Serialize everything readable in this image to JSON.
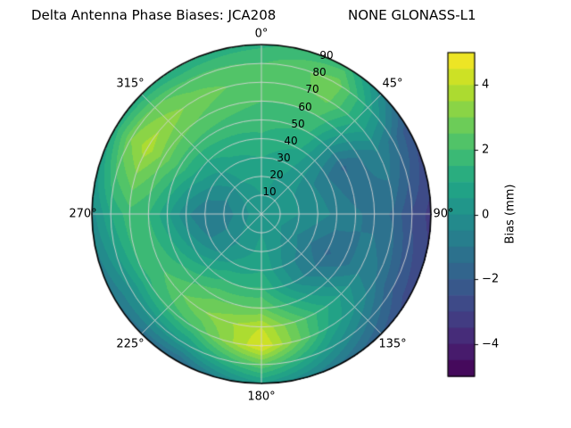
{
  "header": {
    "title_left": "Delta Antenna Phase Biases: JCA208",
    "title_right": "NONE GLONASS-L1"
  },
  "chart_data": {
    "type": "heatmap",
    "projection": "polar",
    "title": "Delta Antenna Phase Biases: JCA208        NONE GLONASS-L1",
    "theta_direction": "clockwise",
    "theta_zero": "top",
    "theta_labels": [
      "0°",
      "45°",
      "90°",
      "135°",
      "180°",
      "225°",
      "270°",
      "315°"
    ],
    "r_labels": [
      "10",
      "20",
      "30",
      "40",
      "50",
      "60",
      "70",
      "80",
      "90"
    ],
    "colorbar": {
      "label": "Bias (mm)",
      "tick_labels": [
        "4",
        "2",
        "0",
        "−2",
        "−4"
      ],
      "tick_values": [
        4,
        2,
        0,
        -2,
        -4
      ],
      "vmin": -5,
      "vmax": 5,
      "level_step": 0.5,
      "colormap": "viridis"
    },
    "grid": {
      "azimuths_deg": [
        0,
        30,
        60,
        90,
        120,
        150,
        180,
        210,
        240,
        270,
        300,
        330
      ],
      "zenith_rings_deg": [
        0,
        10,
        20,
        30,
        40,
        50,
        60,
        70,
        80,
        90
      ],
      "values": [
        [
          0.4,
          0.5,
          0.7,
          1.0,
          1.4,
          1.7,
          2.0,
          2.2,
          2.0,
          1.4
        ],
        [
          0.4,
          0.4,
          0.4,
          0.6,
          1.0,
          1.5,
          2.0,
          2.6,
          2.8,
          1.8
        ],
        [
          0.4,
          0.3,
          0.0,
          -0.4,
          -1.0,
          -1.6,
          -1.0,
          -0.4,
          -1.2,
          -2.4
        ],
        [
          0.4,
          0.2,
          0.0,
          -0.3,
          -0.6,
          -0.9,
          -1.2,
          -1.6,
          -2.6,
          -3.2
        ],
        [
          0.4,
          0.1,
          -0.4,
          -1.0,
          -1.6,
          -1.2,
          -0.6,
          -1.0,
          -2.0,
          -2.8
        ],
        [
          0.4,
          0.2,
          0.0,
          -0.4,
          -0.3,
          0.6,
          1.4,
          1.0,
          0.0,
          -1.2
        ],
        [
          0.4,
          0.5,
          0.7,
          1.0,
          1.6,
          2.6,
          4.0,
          4.6,
          2.4,
          0.4
        ],
        [
          0.4,
          0.3,
          0.2,
          0.6,
          1.5,
          2.4,
          3.0,
          2.0,
          0.4,
          -1.6
        ],
        [
          0.4,
          0.0,
          -0.4,
          -0.4,
          0.5,
          1.4,
          2.0,
          1.4,
          0.0,
          -1.0
        ],
        [
          0.4,
          -0.2,
          -0.8,
          -1.0,
          -0.4,
          0.6,
          1.5,
          1.8,
          1.0,
          -0.2
        ],
        [
          0.4,
          0.0,
          -0.4,
          0.0,
          0.8,
          1.8,
          2.8,
          3.8,
          3.0,
          1.2
        ],
        [
          0.4,
          0.3,
          0.5,
          0.8,
          1.2,
          1.8,
          2.4,
          2.8,
          2.2,
          1.0
        ]
      ]
    }
  },
  "colors": {
    "background": "#ffffff",
    "grid_line": "#d4d4d4",
    "outline": "#000000",
    "viridis_stops": [
      "#440154",
      "#482475",
      "#414487",
      "#355f8d",
      "#2a788e",
      "#21918c",
      "#22a884",
      "#44bf70",
      "#7ad151",
      "#bddf26",
      "#fde725"
    ]
  }
}
